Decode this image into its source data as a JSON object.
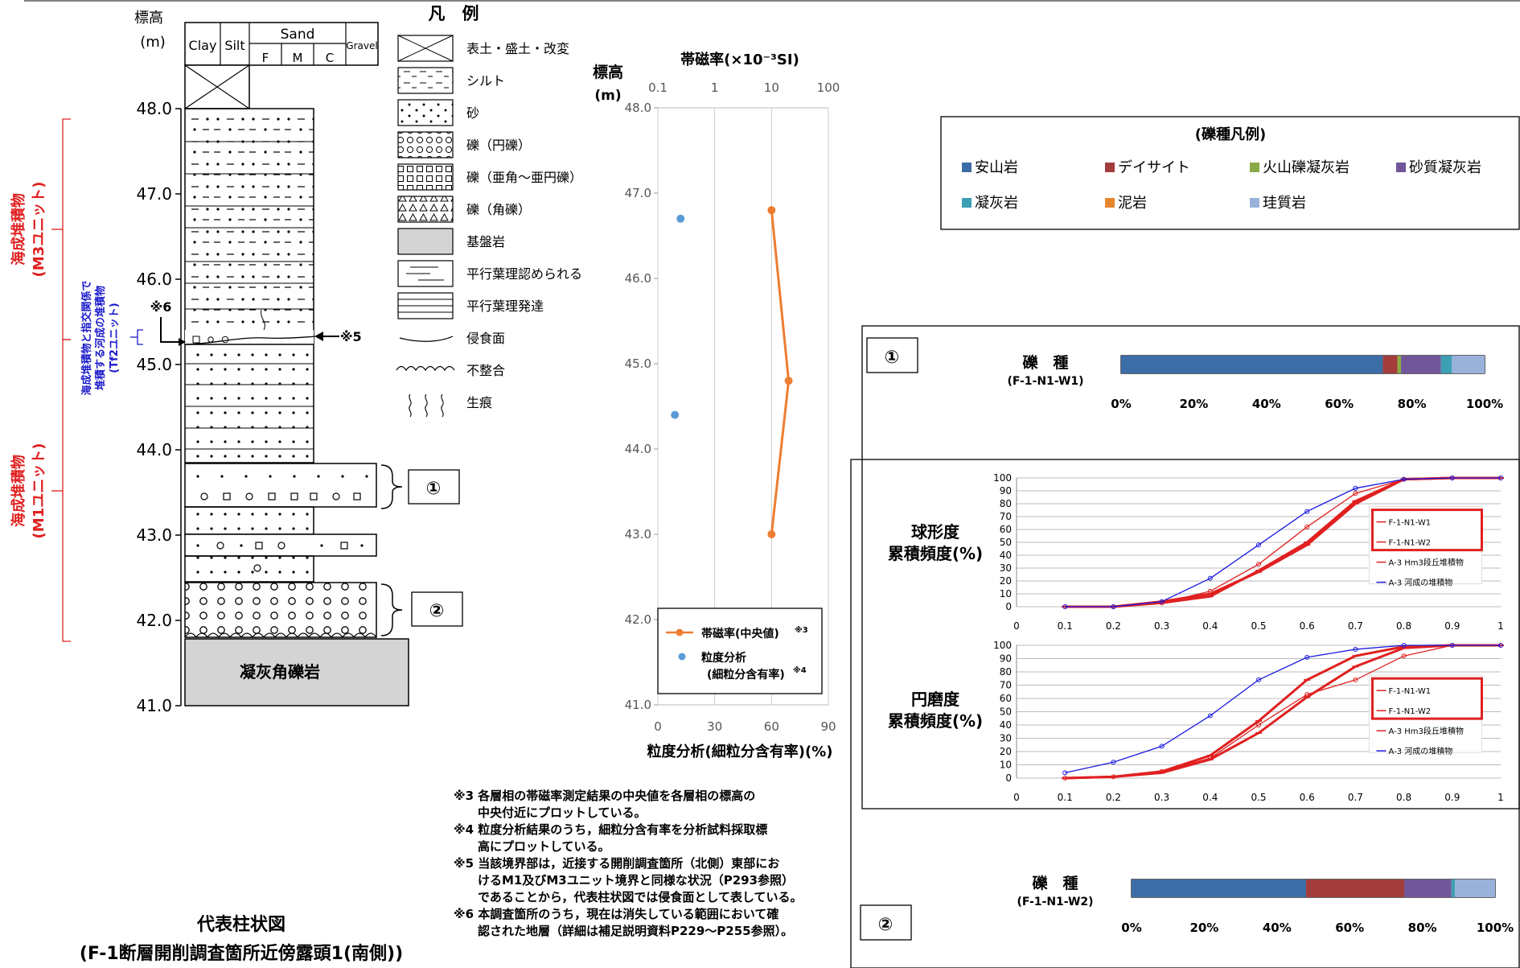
{
  "column": {
    "elev_title": "標高",
    "elev_unit": "(m)",
    "header": {
      "clay": "Clay",
      "silt": "Silt",
      "sand": "Sand",
      "f": "F",
      "m": "M",
      "c": "C",
      "gravel": "Gravel"
    },
    "elev_ticks": [
      "48.0",
      "47.0",
      "46.0",
      "45.0",
      "44.0",
      "43.0",
      "42.0",
      "41.0"
    ],
    "units": {
      "m3_line1": "海成堆積物",
      "m3_line2": "(M3ユニット)",
      "tf2_line1": "海成堆積物と指交関係で",
      "tf2_line2": "堆積する河成の堆積物",
      "tf2_line3": "(Tf2ユニット)",
      "m1_line1": "海成堆積物",
      "m1_line2": "(M1ユニット)"
    },
    "note6": "※6",
    "note5": "※5",
    "bedrock": "凝灰角礫岩",
    "sample1": "①",
    "sample2": "②",
    "title_line1": "代表柱状図",
    "title_line2": "(F-1断層開削調査箇所近傍露頭1(南側))"
  },
  "legend": {
    "title": "凡　例",
    "items": [
      "表土・盛土・改変",
      "シルト",
      "砂",
      "礫（円礫）",
      "礫（亜角～亜円礫）",
      "礫（角礫）",
      "基盤岩",
      "平行葉理認められる",
      "平行葉理発達",
      "侵食面",
      "不整合",
      "生痕"
    ]
  },
  "mag_chart": {
    "elev_label": "標高",
    "elev_unit": "(m)",
    "top_title": "帯磁率(×10⁻³SI)",
    "bottom_title": "粒度分析(細粒分含有率)(%)",
    "legend_mag": "帯磁率(中央値)",
    "legend_mag_note": "※3",
    "legend_grain1": "粒度分析",
    "legend_grain2": "(細粒分含有率)",
    "legend_grain_note": "※4"
  },
  "chart_data": [
    {
      "type": "line",
      "title": "帯磁率(×10⁻³SI)",
      "ylabel": "標高 (m)",
      "xscale": "log",
      "xlim": [
        0.1,
        100
      ],
      "ylim": [
        41.0,
        48.0
      ],
      "x_ticks": [
        "0.1",
        "1",
        "10",
        "100"
      ],
      "y_ticks": [
        "48.0",
        "47.0",
        "46.0",
        "45.0",
        "44.0",
        "43.0",
        "42.0",
        "41.0"
      ],
      "series": [
        {
          "name": "帯磁率(中央値)",
          "color": "#ED7D31",
          "x": [
            10,
            20,
            10
          ],
          "y": [
            46.8,
            44.8,
            43.0
          ]
        }
      ]
    },
    {
      "type": "scatter",
      "xlabel": "粒度分析(細粒分含有率)(%)",
      "xlim": [
        0,
        90
      ],
      "x_ticks": [
        "0",
        "30",
        "60",
        "90"
      ],
      "series": [
        {
          "name": "粒度分析(細粒分含有率)",
          "color": "#5B9BD5",
          "x": [
            12,
            9
          ],
          "y": [
            46.7,
            44.4
          ]
        }
      ]
    },
    {
      "type": "bar",
      "title": "礫種 (F-1-N1-W1)",
      "stacked": true,
      "x_ticks": [
        "0%",
        "20%",
        "40%",
        "60%",
        "80%",
        "100%"
      ],
      "series": [
        {
          "name": "安山岩",
          "color": "#3D6DA6",
          "values": [
            72
          ]
        },
        {
          "name": "デイサイト",
          "color": "#A33D3B",
          "values": [
            4
          ]
        },
        {
          "name": "火山礫凝灰岩",
          "color": "#8AAA45",
          "values": [
            1
          ]
        },
        {
          "name": "砂質凝灰岩",
          "color": "#71569A",
          "values": [
            11
          ]
        },
        {
          "name": "凝灰岩",
          "color": "#3D9FB3",
          "values": [
            3
          ]
        },
        {
          "name": "泥岩",
          "color": "#E6872E",
          "values": [
            0
          ]
        },
        {
          "name": "珪質岩",
          "color": "#99B2DA",
          "values": [
            9
          ]
        }
      ]
    },
    {
      "type": "bar",
      "title": "礫種 (F-1-N1-W2)",
      "stacked": true,
      "x_ticks": [
        "0%",
        "20%",
        "40%",
        "60%",
        "80%",
        "100%"
      ],
      "series": [
        {
          "name": "安山岩",
          "color": "#3D6DA6",
          "values": [
            48
          ]
        },
        {
          "name": "デイサイト",
          "color": "#A33D3B",
          "values": [
            27
          ]
        },
        {
          "name": "火山礫凝灰岩",
          "color": "#8AAA45",
          "values": [
            0
          ]
        },
        {
          "name": "砂質凝灰岩",
          "color": "#71569A",
          "values": [
            13
          ]
        },
        {
          "name": "凝灰岩",
          "color": "#3D9FB3",
          "values": [
            1
          ]
        },
        {
          "name": "泥岩",
          "color": "#E6872E",
          "values": [
            0
          ]
        },
        {
          "name": "珪質岩",
          "color": "#99B2DA",
          "values": [
            11
          ]
        }
      ]
    },
    {
      "type": "line",
      "title": "球形度累積頻度(%)",
      "xlim": [
        0,
        1
      ],
      "ylim": [
        0,
        100
      ],
      "x_ticks": [
        "0",
        "0.1",
        "0.2",
        "0.3",
        "0.4",
        "0.5",
        "0.6",
        "0.7",
        "0.8",
        "0.9",
        "1"
      ],
      "y_ticks": [
        "0",
        "10",
        "20",
        "30",
        "40",
        "50",
        "60",
        "70",
        "80",
        "90",
        "100"
      ],
      "x": [
        0.1,
        0.2,
        0.3,
        0.4,
        0.5,
        0.6,
        0.7,
        0.8,
        0.9,
        1.0
      ],
      "series": [
        {
          "name": "F-1-N1-W1",
          "color": "#E02020",
          "width": 3,
          "marker": "dash",
          "values": [
            0,
            0,
            3,
            8,
            28,
            50,
            82,
            99,
            100,
            100
          ]
        },
        {
          "name": "F-1-N1-W2",
          "color": "#E02020",
          "width": 3,
          "marker": "dash",
          "values": [
            0,
            0,
            4,
            10,
            27,
            48,
            80,
            99,
            100,
            100
          ]
        },
        {
          "name": "A-3 Hm3段丘堆積物",
          "color": "#E02020",
          "width": 1.3,
          "marker": "circle",
          "values": [
            0,
            0,
            3,
            12,
            33,
            62,
            88,
            99,
            100,
            100
          ]
        },
        {
          "name": "A-3 河成の堆積物",
          "color": "#1A1AE0",
          "width": 1.3,
          "marker": "circle",
          "values": [
            0,
            0,
            4,
            22,
            48,
            74,
            92,
            99,
            100,
            100
          ]
        }
      ]
    },
    {
      "type": "line",
      "title": "円磨度累積頻度(%)",
      "xlim": [
        0,
        1
      ],
      "ylim": [
        0,
        100
      ],
      "x_ticks": [
        "0",
        "0.1",
        "0.2",
        "0.3",
        "0.4",
        "0.5",
        "0.6",
        "0.7",
        "0.8",
        "0.9",
        "1"
      ],
      "y_ticks": [
        "0",
        "10",
        "20",
        "30",
        "40",
        "50",
        "60",
        "70",
        "80",
        "90",
        "100"
      ],
      "x": [
        0.1,
        0.2,
        0.3,
        0.4,
        0.5,
        0.6,
        0.7,
        0.8,
        0.9,
        1.0
      ],
      "series": [
        {
          "name": "F-1-N1-W1",
          "color": "#E02020",
          "width": 3,
          "marker": "dash",
          "values": [
            0,
            1,
            5,
            17,
            43,
            74,
            92,
            99,
            100,
            100
          ]
        },
        {
          "name": "F-1-N1-W2",
          "color": "#E02020",
          "width": 3,
          "marker": "dash",
          "values": [
            0,
            1,
            4,
            14,
            34,
            61,
            84,
            98,
            100,
            100
          ]
        },
        {
          "name": "A-3 Hm3段丘堆積物",
          "color": "#E02020",
          "width": 1.3,
          "marker": "circle",
          "values": [
            0,
            1,
            5,
            15,
            40,
            63,
            74,
            92,
            100,
            100
          ]
        },
        {
          "name": "A-3 河成の堆積物",
          "color": "#1A1AE0",
          "width": 1.3,
          "marker": "circle",
          "values": [
            4,
            12,
            24,
            47,
            74,
            91,
            97,
            100,
            100,
            100
          ]
        }
      ]
    }
  ],
  "gravel_legend": {
    "title": "(礫種凡例)",
    "items": [
      {
        "label": "安山岩",
        "color": "#3D6DA6"
      },
      {
        "label": "デイサイト",
        "color": "#A33D3B"
      },
      {
        "label": "火山礫凝灰岩",
        "color": "#8AAA45"
      },
      {
        "label": "砂質凝灰岩",
        "color": "#71569A"
      },
      {
        "label": "凝灰岩",
        "color": "#3D9FB3"
      },
      {
        "label": "泥岩",
        "color": "#E6872E"
      },
      {
        "label": "珪質岩",
        "color": "#99B2DA"
      }
    ]
  },
  "panels": {
    "p1_mark": "①",
    "p2_mark": "②",
    "gravel_label": "礫　種",
    "w1_id": "(F-1-N1-W1)",
    "w2_id": "(F-1-N1-W2)",
    "sph_label1": "球形度",
    "sph_label2": "累積頻度(%)",
    "rnd_label1": "円磨度",
    "rnd_label2": "累積頻度(%)"
  },
  "notes": [
    "※3 各層相の帯磁率測定結果の中央値を各層相の標高の",
    "中央付近にプロットしている。",
    "※4 粒度分析結果のうち，細粒分含有率を分析試料採取標",
    "高にプロットしている。",
    "※5 当該境界部は，近接する開削調査箇所（北側）東部にお",
    "けるM1及びM3ユニット境界と同様な状況（P293参照）",
    "であることから，代表柱状図では侵食面として表している。",
    "※6 本調査箇所のうち，現在は消失している範囲において確",
    "認された地層（詳細は補足説明資料P229～P255参照）。"
  ]
}
